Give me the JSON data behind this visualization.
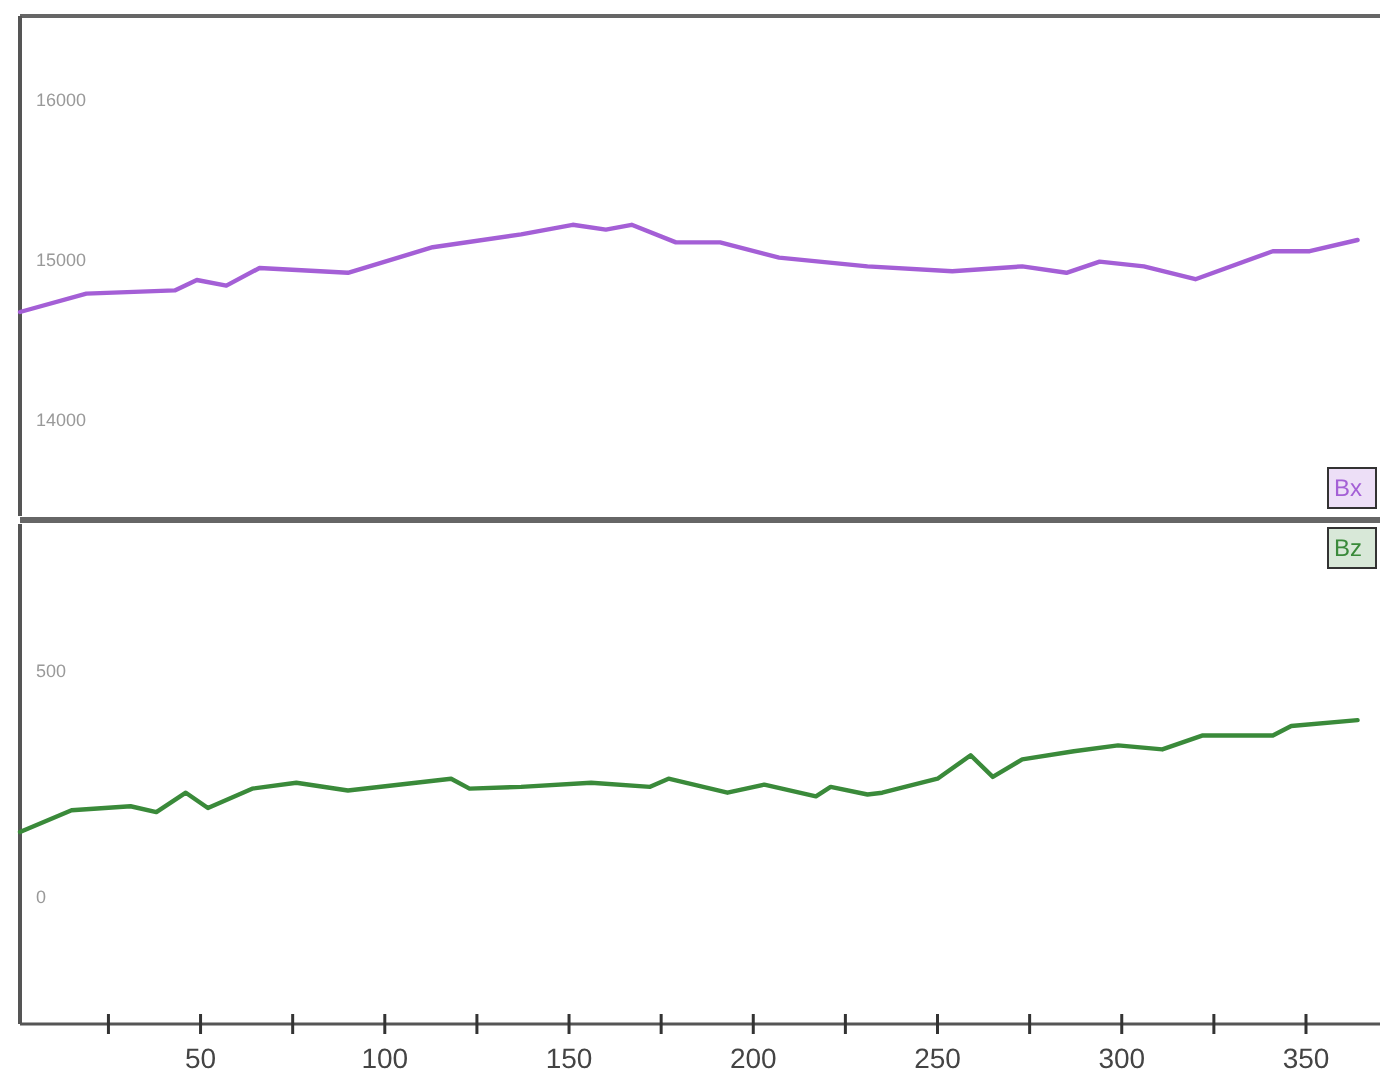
{
  "chart_data": [
    {
      "type": "line",
      "x": [
        1,
        19,
        43,
        49,
        57,
        66,
        90,
        113,
        137,
        151,
        160,
        167,
        179,
        191,
        207,
        231,
        254,
        273,
        285,
        294,
        306,
        320,
        341,
        351,
        364
      ],
      "series": [
        {
          "name": "Bx",
          "color": "#a45fd6",
          "values": [
            14675,
            14790,
            14810,
            14875,
            14840,
            14950,
            14920,
            15080,
            15160,
            15220,
            15190,
            15220,
            15110,
            15110,
            15015,
            14960,
            14930,
            14960,
            14920,
            14990,
            14960,
            14880,
            15055,
            15055,
            15125
          ]
        }
      ],
      "xlim": [
        1,
        369
      ],
      "ylim": [
        13400,
        16525
      ],
      "yticks": [
        14000,
        15000,
        16000
      ],
      "tick_labels": "y",
      "legend": "right",
      "grid": false
    },
    {
      "type": "line",
      "x": [
        1,
        15,
        31,
        38,
        46,
        52,
        64,
        76,
        90,
        118,
        123,
        137,
        156,
        172,
        177,
        193,
        203,
        217,
        221,
        231,
        235,
        250,
        259,
        265,
        273,
        287,
        299,
        311,
        322,
        341,
        346,
        364
      ],
      "series": [
        {
          "name": "Bz",
          "color": "#3a8a3a",
          "values": [
            143,
            191,
            200,
            187,
            230,
            196,
            239,
            252,
            235,
            261,
            239,
            243,
            252,
            243,
            261,
            230,
            248,
            222,
            243,
            226,
            230,
            261,
            313,
            265,
            304,
            322,
            335,
            326,
            357,
            357,
            378,
            391
          ]
        }
      ],
      "xlim": [
        1,
        369
      ],
      "ylim": [
        -283,
        826
      ],
      "yticks": [
        0,
        500
      ],
      "xticks": [
        {
          "value": 25,
          "label": null
        },
        50,
        {
          "value": 75,
          "label": null
        },
        100,
        {
          "value": 125,
          "label": null
        },
        150,
        {
          "value": 175,
          "label": null
        },
        200,
        {
          "value": 225,
          "label": null
        },
        250,
        {
          "value": 275,
          "label": null
        },
        300,
        {
          "value": 325,
          "label": null
        },
        350
      ],
      "legend": "right",
      "grid": false
    }
  ]
}
